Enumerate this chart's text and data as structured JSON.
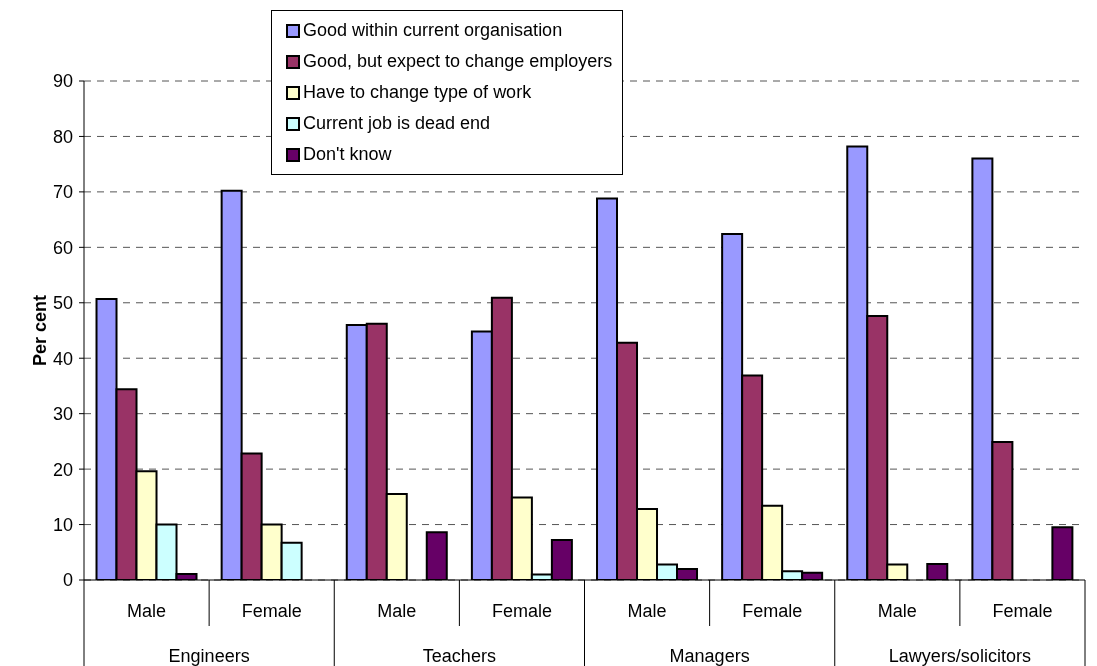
{
  "chart_data": {
    "type": "bar",
    "ylabel": "Per cent",
    "categories": [
      "Male",
      "Female",
      "Male",
      "Female",
      "Male",
      "Female",
      "Male",
      "Female"
    ],
    "annotations": [
      "Engineers",
      "Teachers",
      "Managers",
      "Lawyers/solicitors"
    ],
    "series": [
      {
        "name": "Good within current organisation",
        "color": "#9999ff",
        "values": [
          50.7,
          70.2,
          46.0,
          44.8,
          68.8,
          62.4,
          78.2,
          76.0
        ]
      },
      {
        "name": "Good, but expect to change employers",
        "color": "#993366",
        "values": [
          34.4,
          22.8,
          46.2,
          50.9,
          42.8,
          36.9,
          47.6,
          24.9
        ]
      },
      {
        "name": "Have to change type of work",
        "color": "#ffffcc",
        "values": [
          19.6,
          10.0,
          15.5,
          14.9,
          12.8,
          13.4,
          2.8,
          null
        ]
      },
      {
        "name": "Current job is dead end",
        "color": "#ccffff",
        "values": [
          10.0,
          6.7,
          null,
          1.0,
          2.8,
          1.6,
          null,
          null
        ]
      },
      {
        "name": "Don't know",
        "color": "#660066",
        "values": [
          1.1,
          null,
          8.6,
          7.2,
          2.0,
          1.3,
          2.9,
          9.5
        ]
      }
    ],
    "ylim": [
      0,
      90
    ],
    "yticks": [
      0,
      10,
      20,
      30,
      40,
      50,
      60,
      70,
      80,
      90
    ],
    "grid": "y",
    "legend": "top"
  }
}
